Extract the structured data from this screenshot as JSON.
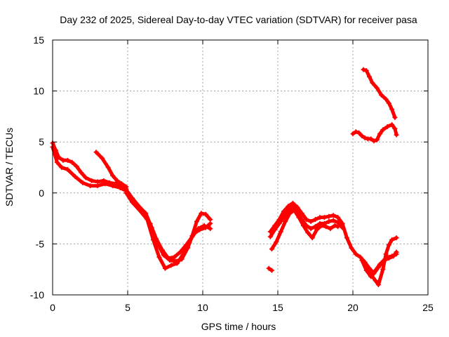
{
  "chart_data": {
    "type": "scatter",
    "title": "Day 232 of 2025, Sidereal Day-to-day VTEC variation (SDTVAR) for receiver pasa",
    "xlabel": "GPS time / hours",
    "ylabel": "SDTVAR / TECUs",
    "xlim": [
      0,
      25
    ],
    "ylim": [
      -10,
      15
    ],
    "grid": true,
    "x_ticks": [
      0,
      5,
      10,
      15,
      20,
      25
    ],
    "x_tick_labels": [
      "0",
      "5",
      "10",
      "15",
      "20",
      "25"
    ],
    "y_ticks": [
      -10,
      -5,
      0,
      5,
      10,
      15
    ],
    "y_tick_labels": [
      "-10",
      "-5",
      "0",
      "5",
      "10",
      "15"
    ],
    "series_color": "#ff0000",
    "grid_color": "#a0a0a0",
    "series": [
      {
        "name": "segment-1-upper",
        "points": [
          [
            0.0,
            4.9
          ],
          [
            0.2,
            4.2
          ],
          [
            0.4,
            3.5
          ],
          [
            0.7,
            3.2
          ],
          [
            1.0,
            3.2
          ],
          [
            1.3,
            3.0
          ],
          [
            1.6,
            2.6
          ],
          [
            1.9,
            2.0
          ],
          [
            2.2,
            1.5
          ],
          [
            2.6,
            1.2
          ],
          [
            3.0,
            1.1
          ],
          [
            3.4,
            1.2
          ],
          [
            3.8,
            1.0
          ],
          [
            4.2,
            0.9
          ],
          [
            4.6,
            0.8
          ],
          [
            4.9,
            0.4
          ]
        ]
      },
      {
        "name": "segment-1-lower",
        "points": [
          [
            0.0,
            4.5
          ],
          [
            0.3,
            3.0
          ],
          [
            0.6,
            2.5
          ],
          [
            1.0,
            2.3
          ],
          [
            1.5,
            1.6
          ],
          [
            2.0,
            1.0
          ],
          [
            2.5,
            0.7
          ],
          [
            3.0,
            0.7
          ],
          [
            3.5,
            0.9
          ],
          [
            4.0,
            0.7
          ],
          [
            4.5,
            0.5
          ],
          [
            4.9,
            0.2
          ]
        ]
      },
      {
        "name": "segment-1-branch",
        "points": [
          [
            2.9,
            4.0
          ],
          [
            3.3,
            3.4
          ],
          [
            3.7,
            2.5
          ],
          [
            4.0,
            1.7
          ],
          [
            4.3,
            1.2
          ],
          [
            4.6,
            0.9
          ],
          [
            4.9,
            0.6
          ]
        ]
      },
      {
        "name": "segment-2-upper",
        "points": [
          [
            4.9,
            0.3
          ],
          [
            5.3,
            -0.5
          ],
          [
            5.8,
            -1.4
          ],
          [
            6.2,
            -2.0
          ],
          [
            6.6,
            -3.4
          ],
          [
            7.0,
            -5.0
          ],
          [
            7.4,
            -6.1
          ],
          [
            7.8,
            -6.6
          ],
          [
            8.2,
            -6.7
          ],
          [
            8.6,
            -6.5
          ],
          [
            9.0,
            -5.4
          ],
          [
            9.3,
            -4.2
          ],
          [
            9.6,
            -2.8
          ],
          [
            9.9,
            -2.0
          ],
          [
            10.2,
            -2.1
          ],
          [
            10.5,
            -2.6
          ]
        ]
      },
      {
        "name": "segment-2-lower",
        "points": [
          [
            4.9,
            0.0
          ],
          [
            5.3,
            -0.9
          ],
          [
            5.8,
            -1.7
          ],
          [
            6.3,
            -2.6
          ],
          [
            6.7,
            -4.6
          ],
          [
            7.1,
            -6.3
          ],
          [
            7.5,
            -7.4
          ],
          [
            7.9,
            -7.1
          ],
          [
            8.3,
            -6.9
          ],
          [
            8.7,
            -6.0
          ],
          [
            9.1,
            -4.9
          ],
          [
            9.4,
            -4.0
          ],
          [
            9.8,
            -3.6
          ],
          [
            10.2,
            -3.4
          ],
          [
            10.5,
            -3.0
          ]
        ]
      },
      {
        "name": "segment-2-middle",
        "points": [
          [
            6.5,
            -3.0
          ],
          [
            6.9,
            -4.5
          ],
          [
            7.3,
            -5.6
          ],
          [
            7.7,
            -6.4
          ],
          [
            8.1,
            -6.3
          ],
          [
            8.5,
            -5.8
          ],
          [
            8.9,
            -5.1
          ],
          [
            9.3,
            -4.3
          ],
          [
            9.7,
            -3.5
          ],
          [
            10.1,
            -3.2
          ],
          [
            10.5,
            -3.5
          ]
        ]
      },
      {
        "name": "segment-3-isolated",
        "points": [
          [
            14.4,
            -7.4
          ],
          [
            14.6,
            -7.6
          ]
        ]
      },
      {
        "name": "segment-3-upper",
        "points": [
          [
            14.5,
            -3.8
          ],
          [
            14.8,
            -3.2
          ],
          [
            15.1,
            -2.6
          ],
          [
            15.4,
            -1.8
          ],
          [
            15.7,
            -1.3
          ],
          [
            16.0,
            -1.0
          ],
          [
            16.3,
            -1.4
          ],
          [
            16.6,
            -2.0
          ],
          [
            16.9,
            -2.6
          ],
          [
            17.2,
            -2.8
          ],
          [
            17.5,
            -2.6
          ],
          [
            17.8,
            -2.4
          ],
          [
            18.1,
            -2.4
          ],
          [
            18.4,
            -2.3
          ],
          [
            18.7,
            -2.2
          ],
          [
            19.0,
            -2.4
          ],
          [
            19.3,
            -3.0
          ]
        ]
      },
      {
        "name": "segment-3-lower",
        "points": [
          [
            14.6,
            -5.5
          ],
          [
            14.9,
            -4.8
          ],
          [
            15.2,
            -3.8
          ],
          [
            15.5,
            -2.8
          ],
          [
            15.8,
            -2.0
          ],
          [
            16.1,
            -1.7
          ],
          [
            16.4,
            -2.4
          ],
          [
            16.7,
            -3.2
          ],
          [
            17.0,
            -3.9
          ],
          [
            17.3,
            -4.4
          ],
          [
            17.6,
            -3.6
          ],
          [
            17.9,
            -3.2
          ],
          [
            18.2,
            -3.3
          ],
          [
            18.5,
            -3.5
          ],
          [
            18.8,
            -3.2
          ],
          [
            19.0,
            -3.3
          ]
        ]
      },
      {
        "name": "segment-3-middle",
        "points": [
          [
            14.5,
            -4.3
          ],
          [
            14.8,
            -3.6
          ],
          [
            15.1,
            -3.0
          ],
          [
            15.4,
            -2.4
          ],
          [
            15.7,
            -1.7
          ],
          [
            16.0,
            -1.4
          ],
          [
            16.3,
            -1.9
          ],
          [
            16.6,
            -2.6
          ],
          [
            16.9,
            -3.2
          ],
          [
            17.2,
            -3.5
          ],
          [
            17.5,
            -3.3
          ],
          [
            17.8,
            -3.0
          ],
          [
            18.1,
            -3.0
          ],
          [
            18.4,
            -2.8
          ],
          [
            18.7,
            -2.7
          ],
          [
            19.0,
            -2.9
          ],
          [
            19.3,
            -3.4
          ]
        ]
      },
      {
        "name": "segment-3-tail-a",
        "points": [
          [
            19.3,
            -3.0
          ],
          [
            19.6,
            -4.4
          ],
          [
            19.9,
            -5.4
          ],
          [
            20.2,
            -6.0
          ],
          [
            20.5,
            -6.3
          ],
          [
            20.8,
            -6.8
          ],
          [
            21.1,
            -7.4
          ],
          [
            21.4,
            -7.9
          ],
          [
            21.7,
            -7.3
          ],
          [
            22.0,
            -6.7
          ],
          [
            22.3,
            -6.3
          ],
          [
            22.6,
            -6.2
          ],
          [
            22.9,
            -6.0
          ]
        ]
      },
      {
        "name": "segment-3-tail-b",
        "points": [
          [
            20.9,
            -7.1
          ],
          [
            21.2,
            -8.0
          ],
          [
            21.5,
            -8.6
          ],
          [
            21.7,
            -9.0
          ],
          [
            22.0,
            -7.5
          ],
          [
            22.2,
            -6.0
          ],
          [
            22.4,
            -5.1
          ],
          [
            22.6,
            -4.6
          ],
          [
            22.9,
            -4.4
          ]
        ]
      },
      {
        "name": "segment-3-tail-c",
        "points": [
          [
            20.6,
            -6.6
          ],
          [
            20.9,
            -7.6
          ],
          [
            21.2,
            -8.2
          ],
          [
            21.5,
            -7.6
          ],
          [
            21.8,
            -7.0
          ],
          [
            22.1,
            -6.6
          ],
          [
            22.4,
            -6.4
          ],
          [
            22.7,
            -6.2
          ],
          [
            22.9,
            -5.8
          ]
        ]
      },
      {
        "name": "segment-4-upper",
        "points": [
          [
            20.7,
            12.1
          ],
          [
            20.9,
            12.0
          ],
          [
            21.1,
            11.4
          ],
          [
            21.3,
            10.8
          ],
          [
            21.6,
            10.3
          ],
          [
            21.9,
            9.6
          ],
          [
            22.2,
            9.2
          ],
          [
            22.4,
            8.8
          ],
          [
            22.6,
            8.2
          ],
          [
            22.8,
            7.4
          ]
        ]
      },
      {
        "name": "segment-4-lower",
        "points": [
          [
            20.0,
            5.8
          ],
          [
            20.2,
            6.0
          ],
          [
            20.4,
            5.9
          ],
          [
            20.6,
            5.6
          ],
          [
            20.8,
            5.4
          ],
          [
            21.0,
            5.3
          ],
          [
            21.2,
            5.3
          ],
          [
            21.4,
            5.1
          ],
          [
            21.6,
            5.2
          ],
          [
            21.8,
            5.8
          ],
          [
            22.0,
            6.2
          ],
          [
            22.3,
            6.5
          ],
          [
            22.6,
            6.7
          ],
          [
            22.8,
            6.3
          ],
          [
            22.9,
            5.7
          ]
        ]
      }
    ]
  }
}
